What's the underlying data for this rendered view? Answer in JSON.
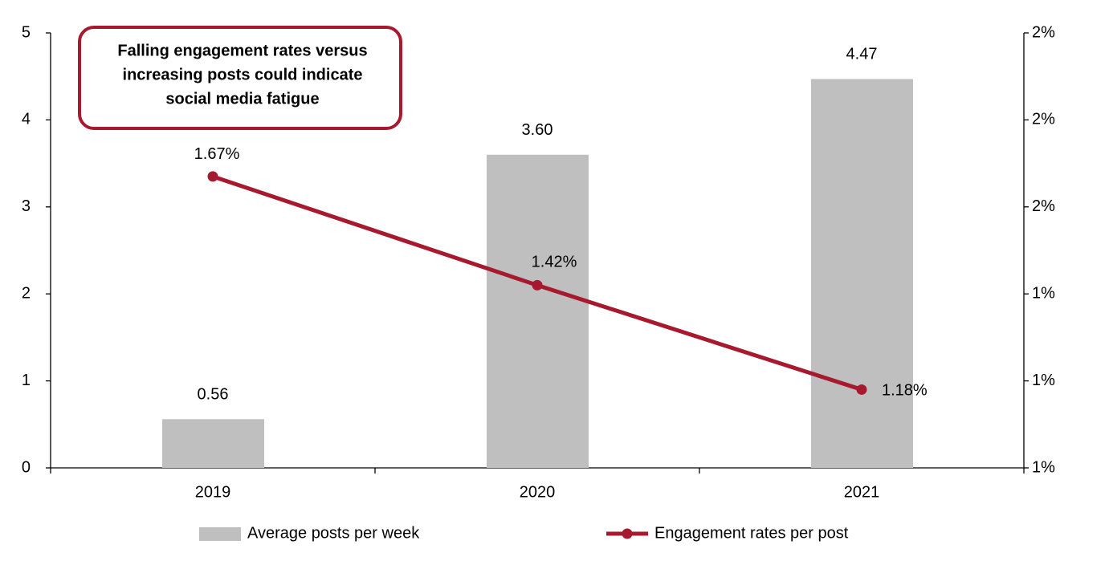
{
  "chart_data": {
    "type": "bar-line",
    "annotation": [
      "Falling engagement rates versus",
      "increasing posts could indicate",
      "social media fatigue"
    ],
    "categories": [
      "2019",
      "2020",
      "2021"
    ],
    "series": [
      {
        "name": "Average posts per week",
        "type": "bar",
        "color": "#bfbfbf",
        "values": [
          0.56,
          3.6,
          4.47
        ],
        "value_labels": [
          "0.56",
          "3.60",
          "4.47"
        ]
      },
      {
        "name": "Engagement rates per post",
        "type": "line",
        "axis": "y2",
        "color": "#a6192e",
        "values": [
          1.67,
          1.42,
          1.18
        ],
        "value_labels": [
          "1.67%",
          "1.42%",
          "1.18%"
        ]
      }
    ],
    "ylim": [
      0,
      5
    ],
    "yticks": [
      0,
      1,
      2,
      3,
      4,
      5
    ],
    "y2lim": [
      1.0,
      2.0
    ],
    "y2ticks": [
      {
        "value": 1.0,
        "label": "1%"
      },
      {
        "value": 1.2,
        "label": "1%"
      },
      {
        "value": 1.4,
        "label": "1%"
      },
      {
        "value": 1.6,
        "label": "2%"
      },
      {
        "value": 1.8,
        "label": "2%"
      },
      {
        "value": 2.0,
        "label": "2%"
      }
    ],
    "grid": false,
    "legend": "bottom"
  }
}
